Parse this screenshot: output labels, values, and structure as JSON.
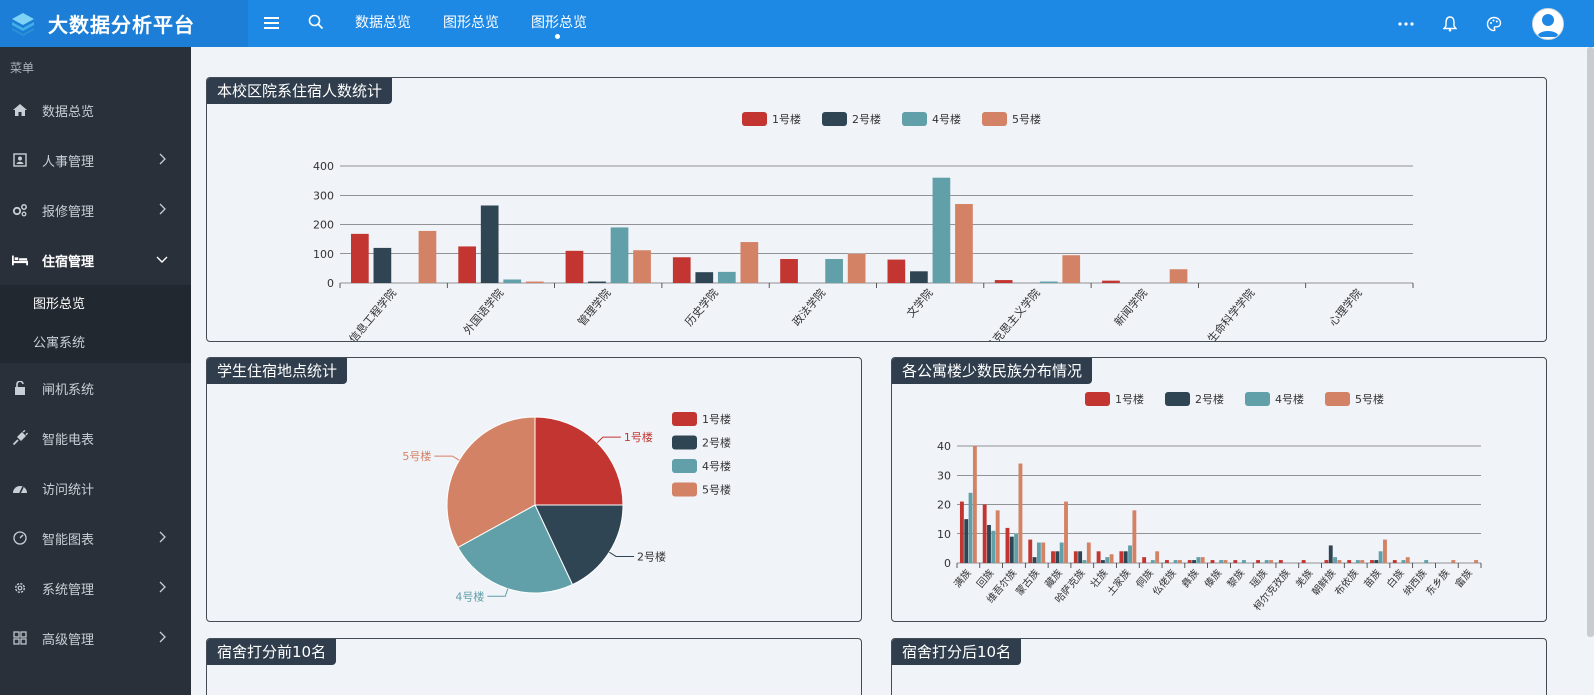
{
  "app": {
    "title": "大数据分析平台"
  },
  "top_tabs": [
    {
      "label": "数据总览",
      "active": false
    },
    {
      "label": "图形总览",
      "active": false
    },
    {
      "label": "图形总览",
      "active": true
    }
  ],
  "top_icons": [
    "more-icon",
    "bell-icon",
    "palette-icon",
    "user-avatar-icon"
  ],
  "sidebar": {
    "caption": "菜单",
    "items": [
      {
        "label": "数据总览",
        "icon": "home-icon",
        "has_children": false
      },
      {
        "label": "人事管理",
        "icon": "contact-card-icon",
        "has_children": true
      },
      {
        "label": "报修管理",
        "icon": "gears-icon",
        "has_children": true
      },
      {
        "label": "住宿管理",
        "icon": "bed-icon",
        "has_children": true,
        "open": true,
        "children": [
          {
            "label": "图形总览",
            "active": true
          },
          {
            "label": "公寓系统",
            "active": false
          }
        ]
      },
      {
        "label": "闸机系统",
        "icon": "unlock-icon",
        "has_children": false
      },
      {
        "label": "智能电表",
        "icon": "plug-icon",
        "has_children": false
      },
      {
        "label": "访问统计",
        "icon": "dashboard-icon",
        "has_children": false
      },
      {
        "label": "智能图表",
        "icon": "gauge-icon",
        "has_children": true
      },
      {
        "label": "系统管理",
        "icon": "gear-icon",
        "has_children": true
      },
      {
        "label": "高级管理",
        "icon": "grid-icon",
        "has_children": true
      }
    ]
  },
  "panels": {
    "p1_title": "本校区院系住宿人数统计",
    "p2_title": "学生住宿地点统计",
    "p3_title": "各公寓楼少数民族分布情况",
    "p4_title": "宿舍打分前10名",
    "p5_title": "宿舍打分后10名"
  },
  "colors": {
    "s1": "#c23531",
    "s2": "#2f4554",
    "s3": "#61a0a8",
    "s4": "#d48265"
  },
  "chart_data": [
    {
      "type": "bar",
      "title": "本校区院系住宿人数统计",
      "legend": [
        "1号楼",
        "2号楼",
        "4号楼",
        "5号楼"
      ],
      "legend_position": "top-center",
      "categories": [
        "信息工程学院",
        "外国语学院",
        "管理学院",
        "历史学院",
        "政法学院",
        "文学院",
        "马克思主义学院",
        "新闻学院",
        "生命科学学院",
        "心理学院"
      ],
      "series": [
        {
          "name": "1号楼",
          "values": [
            168,
            125,
            110,
            88,
            82,
            80,
            10,
            8,
            0,
            0
          ]
        },
        {
          "name": "2号楼",
          "values": [
            120,
            265,
            5,
            37,
            0,
            40,
            0,
            0,
            0,
            0
          ]
        },
        {
          "name": "4号楼",
          "values": [
            0,
            12,
            190,
            38,
            82,
            360,
            5,
            0,
            0,
            0
          ]
        },
        {
          "name": "5号楼",
          "values": [
            178,
            5,
            112,
            140,
            100,
            270,
            95,
            47,
            0,
            0
          ]
        }
      ],
      "yticks": [
        0,
        100,
        200,
        300,
        400
      ],
      "ylim": [
        0,
        400
      ],
      "grid": true
    },
    {
      "type": "pie",
      "title": "学生住宿地点统计",
      "legend": [
        "1号楼",
        "2号楼",
        "4号楼",
        "5号楼"
      ],
      "legend_position": "right",
      "slices": [
        {
          "name": "1号楼",
          "value": 25
        },
        {
          "name": "2号楼",
          "value": 18
        },
        {
          "name": "4号楼",
          "value": 24
        },
        {
          "name": "5号楼",
          "value": 33
        }
      ]
    },
    {
      "type": "bar",
      "title": "各公寓楼少数民族分布情况",
      "legend": [
        "1号楼",
        "2号楼",
        "4号楼",
        "5号楼"
      ],
      "legend_position": "top-center",
      "categories": [
        "满族",
        "回族",
        "维吾尔族",
        "蒙古族",
        "藏族",
        "哈萨克族",
        "壮族",
        "土家族",
        "侗族",
        "仫佬族",
        "彝族",
        "傣族",
        "黎族",
        "瑶族",
        "柯尔克孜族",
        "羌族",
        "朝鲜族",
        "布依族",
        "苗族",
        "白族",
        "纳西族",
        "东乡族",
        "畲族"
      ],
      "series": [
        {
          "name": "1号楼",
          "values": [
            21,
            20,
            12,
            8,
            4,
            4,
            4,
            4,
            2,
            1,
            1,
            1,
            1,
            1,
            1,
            1,
            1,
            1,
            1,
            1,
            0,
            0,
            0
          ]
        },
        {
          "name": "2号楼",
          "values": [
            15,
            13,
            9,
            2,
            4,
            4,
            1,
            4,
            0,
            0,
            1,
            0,
            0,
            0,
            0,
            0,
            6,
            0,
            1,
            0,
            0,
            0,
            0
          ]
        },
        {
          "name": "4号楼",
          "values": [
            24,
            11,
            10,
            7,
            7,
            1,
            2,
            6,
            1,
            1,
            2,
            1,
            1,
            1,
            0,
            0,
            2,
            1,
            4,
            1,
            1,
            0,
            0
          ]
        },
        {
          "name": "5号楼",
          "values": [
            40,
            18,
            34,
            7,
            21,
            7,
            3,
            18,
            4,
            1,
            2,
            1,
            0,
            1,
            0,
            0,
            1,
            1,
            8,
            2,
            0,
            1,
            1
          ]
        }
      ],
      "yticks": [
        0,
        10,
        20,
        30,
        40
      ],
      "ylim": [
        0,
        40
      ],
      "grid": true
    }
  ]
}
